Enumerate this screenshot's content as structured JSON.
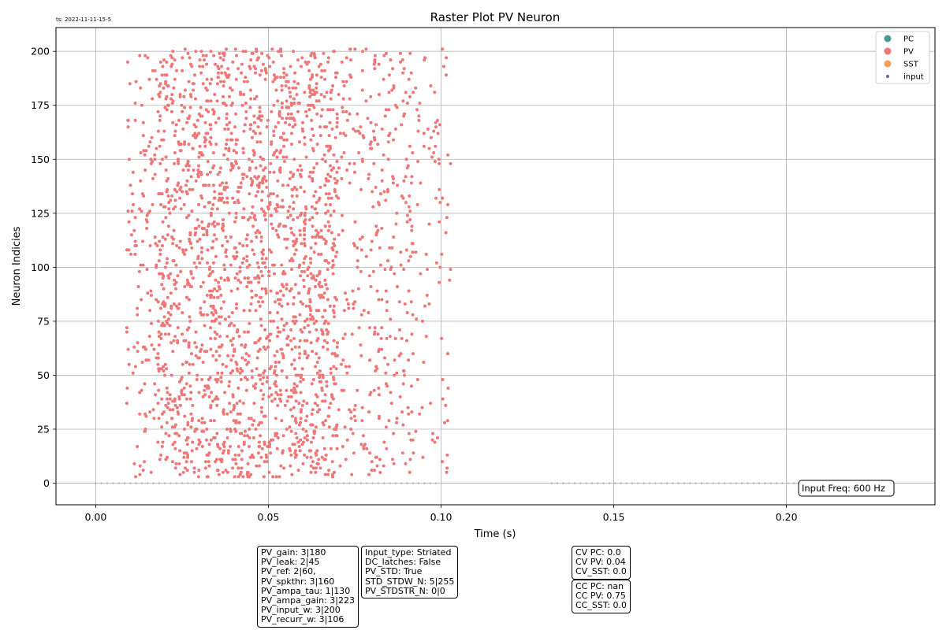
{
  "timestamp": "ts: 2022-11-11-15-5",
  "input_freq": "Input Freq: 600 Hz",
  "params_box_1": [
    "PV_gain: 3|180",
    "PV_leak: 2|45",
    "PV_ref: 2|60,",
    "PV_spkthr: 3|160",
    "PV_ampa_tau: 1|130",
    "PV_ampa_gain: 3|223",
    "PV_input_w: 3|200",
    "PV_recurr_w: 3|106"
  ],
  "params_box_2": [
    "Input_type: Striated",
    "DC_latches: False",
    "PV_STD: True",
    "STD_STDW_N: 5|255",
    "PV_STDSTR_N: 0|0"
  ],
  "cv_box": [
    "CV PC: 0.0",
    "CV PV: 0.04",
    "CV_SST: 0.0"
  ],
  "cc_box": [
    "CC PC: nan",
    "CC PV: 0.75",
    "CC_SST: 0.0"
  ],
  "colors": {
    "pc": "#4d9a9a",
    "pv": "#ee7777",
    "sst": "#f0a05a",
    "input": "#5a7098",
    "input_dots": "#b0b0b0",
    "grid": "#b0b0b0"
  },
  "chart_data": {
    "type": "scatter",
    "title": "Raster Plot PV Neuron",
    "xlabel": "Time (s)",
    "ylabel": "Neuron Indicies",
    "xlim": [
      -0.0115,
      0.243
    ],
    "ylim": [
      -10,
      211
    ],
    "xticks": [
      0.0,
      0.05,
      0.1,
      0.15,
      0.2
    ],
    "xtick_labels": [
      "0.00",
      "0.05",
      "0.10",
      "0.15",
      "0.20"
    ],
    "yticks": [
      0,
      25,
      50,
      75,
      100,
      125,
      150,
      175,
      200
    ],
    "ytick_labels": [
      "0",
      "25",
      "50",
      "75",
      "100",
      "125",
      "150",
      "175",
      "200"
    ],
    "grid": true,
    "legend_position": "top-right",
    "legend": [
      {
        "label": "PC",
        "color": "#4d9a9a"
      },
      {
        "label": "PV",
        "color": "#ee7777"
      },
      {
        "label": "SST",
        "color": "#f0a05a"
      },
      {
        "label": "input",
        "color": "#5a7098"
      }
    ],
    "series": [
      {
        "name": "PV",
        "neuron_range": [
          3,
          201
        ],
        "spike_time_range": [
          0.009,
          0.103
        ],
        "dense_time_range": [
          0.018,
          0.07
        ],
        "approx_spike_count": 2600
      },
      {
        "name": "input",
        "neuron": 0,
        "active_intervals": [
          [
            0.0,
            0.1
          ],
          [
            0.132,
            0.21
          ]
        ],
        "spike_interval": 0.00167
      }
    ]
  }
}
